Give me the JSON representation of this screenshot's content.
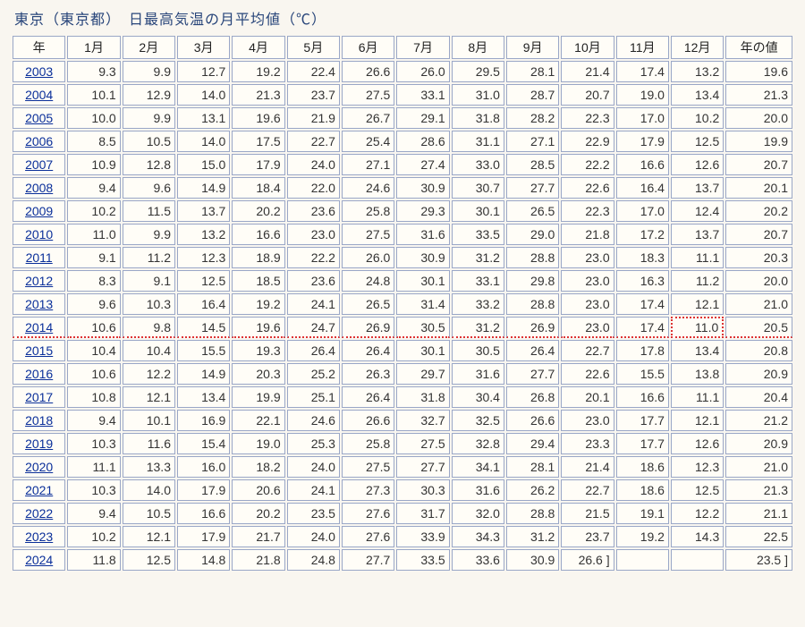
{
  "title": "東京（東京都）　日最高気温の月平均値（℃）",
  "columns": [
    "年",
    "1月",
    "2月",
    "3月",
    "4月",
    "5月",
    "6月",
    "7月",
    "8月",
    "9月",
    "10月",
    "11月",
    "12月",
    "年の値"
  ],
  "highlight_row_year": "2014",
  "highlight_cell": {
    "year": "2014",
    "col_index": 12
  },
  "rows": [
    {
      "year": "2003",
      "values": [
        "9.3",
        "9.9",
        "12.7",
        "19.2",
        "22.4",
        "26.6",
        "26.0",
        "29.5",
        "28.1",
        "21.4",
        "17.4",
        "13.2",
        "19.6"
      ]
    },
    {
      "year": "2004",
      "values": [
        "10.1",
        "12.9",
        "14.0",
        "21.3",
        "23.7",
        "27.5",
        "33.1",
        "31.0",
        "28.7",
        "20.7",
        "19.0",
        "13.4",
        "21.3"
      ]
    },
    {
      "year": "2005",
      "values": [
        "10.0",
        "9.9",
        "13.1",
        "19.6",
        "21.9",
        "26.7",
        "29.1",
        "31.8",
        "28.2",
        "22.3",
        "17.0",
        "10.2",
        "20.0"
      ]
    },
    {
      "year": "2006",
      "values": [
        "8.5",
        "10.5",
        "14.0",
        "17.5",
        "22.7",
        "25.4",
        "28.6",
        "31.1",
        "27.1",
        "22.9",
        "17.9",
        "12.5",
        "19.9"
      ]
    },
    {
      "year": "2007",
      "values": [
        "10.9",
        "12.8",
        "15.0",
        "17.9",
        "24.0",
        "27.1",
        "27.4",
        "33.0",
        "28.5",
        "22.2",
        "16.6",
        "12.6",
        "20.7"
      ]
    },
    {
      "year": "2008",
      "values": [
        "9.4",
        "9.6",
        "14.9",
        "18.4",
        "22.0",
        "24.6",
        "30.9",
        "30.7",
        "27.7",
        "22.6",
        "16.4",
        "13.7",
        "20.1"
      ]
    },
    {
      "year": "2009",
      "values": [
        "10.2",
        "11.5",
        "13.7",
        "20.2",
        "23.6",
        "25.8",
        "29.3",
        "30.1",
        "26.5",
        "22.3",
        "17.0",
        "12.4",
        "20.2"
      ]
    },
    {
      "year": "2010",
      "values": [
        "11.0",
        "9.9",
        "13.2",
        "16.6",
        "23.0",
        "27.5",
        "31.6",
        "33.5",
        "29.0",
        "21.8",
        "17.2",
        "13.7",
        "20.7"
      ]
    },
    {
      "year": "2011",
      "values": [
        "9.1",
        "11.2",
        "12.3",
        "18.9",
        "22.2",
        "26.0",
        "30.9",
        "31.2",
        "28.8",
        "23.0",
        "18.3",
        "11.1",
        "20.3"
      ]
    },
    {
      "year": "2012",
      "values": [
        "8.3",
        "9.1",
        "12.5",
        "18.5",
        "23.6",
        "24.8",
        "30.1",
        "33.1",
        "29.8",
        "23.0",
        "16.3",
        "11.2",
        "20.0"
      ]
    },
    {
      "year": "2013",
      "values": [
        "9.6",
        "10.3",
        "16.4",
        "19.2",
        "24.1",
        "26.5",
        "31.4",
        "33.2",
        "28.8",
        "23.0",
        "17.4",
        "12.1",
        "21.0"
      ]
    },
    {
      "year": "2014",
      "values": [
        "10.6",
        "9.8",
        "14.5",
        "19.6",
        "24.7",
        "26.9",
        "30.5",
        "31.2",
        "26.9",
        "23.0",
        "17.4",
        "11.0",
        "20.5"
      ]
    },
    {
      "year": "2015",
      "values": [
        "10.4",
        "10.4",
        "15.5",
        "19.3",
        "26.4",
        "26.4",
        "30.1",
        "30.5",
        "26.4",
        "22.7",
        "17.8",
        "13.4",
        "20.8"
      ]
    },
    {
      "year": "2016",
      "values": [
        "10.6",
        "12.2",
        "14.9",
        "20.3",
        "25.2",
        "26.3",
        "29.7",
        "31.6",
        "27.7",
        "22.6",
        "15.5",
        "13.8",
        "20.9"
      ]
    },
    {
      "year": "2017",
      "values": [
        "10.8",
        "12.1",
        "13.4",
        "19.9",
        "25.1",
        "26.4",
        "31.8",
        "30.4",
        "26.8",
        "20.1",
        "16.6",
        "11.1",
        "20.4"
      ]
    },
    {
      "year": "2018",
      "values": [
        "9.4",
        "10.1",
        "16.9",
        "22.1",
        "24.6",
        "26.6",
        "32.7",
        "32.5",
        "26.6",
        "23.0",
        "17.7",
        "12.1",
        "21.2"
      ]
    },
    {
      "year": "2019",
      "values": [
        "10.3",
        "11.6",
        "15.4",
        "19.0",
        "25.3",
        "25.8",
        "27.5",
        "32.8",
        "29.4",
        "23.3",
        "17.7",
        "12.6",
        "20.9"
      ]
    },
    {
      "year": "2020",
      "values": [
        "11.1",
        "13.3",
        "16.0",
        "18.2",
        "24.0",
        "27.5",
        "27.7",
        "34.1",
        "28.1",
        "21.4",
        "18.6",
        "12.3",
        "21.0"
      ]
    },
    {
      "year": "2021",
      "values": [
        "10.3",
        "14.0",
        "17.9",
        "20.6",
        "24.1",
        "27.3",
        "30.3",
        "31.6",
        "26.2",
        "22.7",
        "18.6",
        "12.5",
        "21.3"
      ]
    },
    {
      "year": "2022",
      "values": [
        "9.4",
        "10.5",
        "16.6",
        "20.2",
        "23.5",
        "27.6",
        "31.7",
        "32.0",
        "28.8",
        "21.5",
        "19.1",
        "12.2",
        "21.1"
      ]
    },
    {
      "year": "2023",
      "values": [
        "10.2",
        "12.1",
        "17.9",
        "21.7",
        "24.0",
        "27.6",
        "33.9",
        "34.3",
        "31.2",
        "23.7",
        "19.2",
        "14.3",
        "22.5"
      ]
    },
    {
      "year": "2024",
      "values": [
        "11.8",
        "12.5",
        "14.8",
        "21.8",
        "24.8",
        "27.7",
        "33.5",
        "33.6",
        "30.9",
        "26.6 ]",
        "",
        "",
        "23.5 ]"
      ]
    }
  ]
}
